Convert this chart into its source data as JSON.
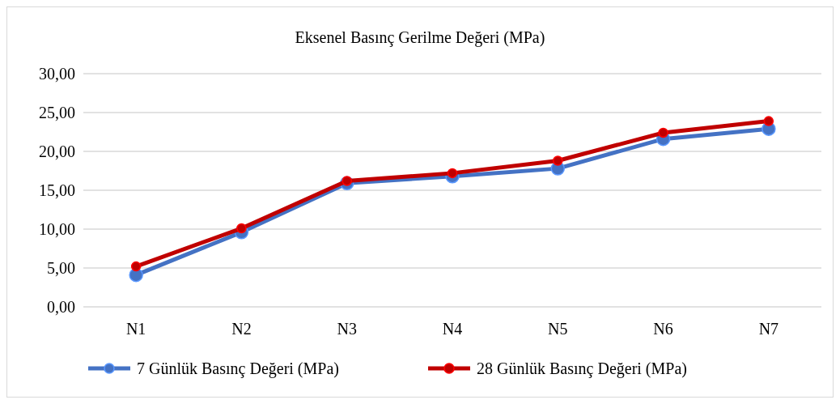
{
  "chart_data": {
    "type": "line",
    "title": "Eksenel Basınç Gerilme Değeri (MPa)",
    "categories": [
      "N1",
      "N2",
      "N3",
      "N4",
      "N5",
      "N6",
      "N7"
    ],
    "series": [
      {
        "name": "7 Günlük Basınç Değeri (MPa)",
        "color": "#4472c4",
        "values": [
          4.1,
          9.6,
          15.9,
          16.8,
          17.8,
          21.6,
          22.9
        ]
      },
      {
        "name": "28 Günlük Basınç Değeri (MPa)",
        "color": "#c00000",
        "values": [
          5.2,
          10.1,
          16.2,
          17.2,
          18.8,
          22.4,
          23.9
        ]
      }
    ],
    "ylim": [
      0,
      30
    ],
    "yticks": [
      {
        "value": 0,
        "label": "0,00"
      },
      {
        "value": 5,
        "label": "5,00"
      },
      {
        "value": 10,
        "label": "10,00"
      },
      {
        "value": 15,
        "label": "15,00"
      },
      {
        "value": 20,
        "label": "20,00"
      },
      {
        "value": 25,
        "label": "25,00"
      },
      {
        "value": 30,
        "label": "30,00"
      }
    ],
    "grid": "y",
    "legend": "bottom",
    "marker": "circle",
    "line_style": "solid"
  }
}
